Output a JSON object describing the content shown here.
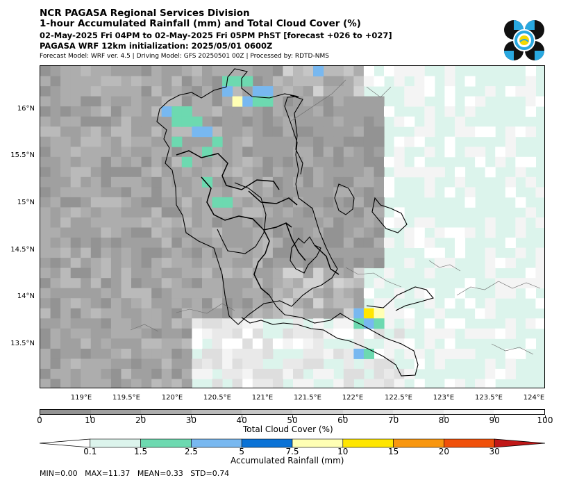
{
  "header": {
    "line1": "NCR PAGASA Regional Services Division",
    "line2": "1-hour Accumulated Rainfall (mm) and Total Cloud Cover (%)",
    "line3": "02-May-2025 Fri 04PM to 02-May-2025 Fri 05PM PhST [forecast +026 to +027]",
    "line4": "PAGASA WRF 12km initialization: 2025/05/01 0600Z",
    "line5": "Forecast Model: WRF ver. 4.5 | Driving Model: GFS 20250501 00Z | Processed by: RDTD-NMS"
  },
  "logo": {
    "name": "pagasa-logo-icon",
    "colors": {
      "black": "#111111",
      "sky": "#29a8e0",
      "yellow": "#f5d800"
    }
  },
  "map": {
    "lat_labels": [
      "16°N",
      "15.5°N",
      "15°N",
      "14.5°N",
      "14°N",
      "13.5°N"
    ],
    "lon_labels": [
      "119°E",
      "119.5°E",
      "120°E",
      "120.5°E",
      "121°E",
      "121.5°E",
      "122°E",
      "122.5°E",
      "123°E",
      "123.5°E",
      "124°E"
    ],
    "extent": {
      "lon": [
        118.55,
        124.1
      ],
      "lat": [
        13.0,
        16.47
      ]
    }
  },
  "cloud_cover": {
    "title": "Total Cloud Cover (%)",
    "ticks": [
      "0",
      "10",
      "20",
      "30",
      "40",
      "50",
      "60",
      "70",
      "80",
      "90",
      "100"
    ],
    "colors": [
      "#939393",
      "#a0a0a0",
      "#adadad",
      "#bababa",
      "#c6c6c6",
      "#d2d2d2",
      "#dedede",
      "#e9e9e9",
      "#f4f4f4",
      "#ffffff"
    ]
  },
  "rainfall": {
    "title": "Accumulated Rainfall (mm)",
    "ticks": [
      "0.1",
      "1.5",
      "2.5",
      "5",
      "7.5",
      "10",
      "15",
      "20",
      "30"
    ],
    "colors": [
      "#dcf4ec",
      "#6dd9b0",
      "#78b8f0",
      "#0a72d6",
      "#ffffb4",
      "#ffe600",
      "#f8960f",
      "#f0500a",
      "#c01818"
    ]
  },
  "stats": {
    "text": "MIN=0.00   MAX=11.37   MEAN=0.33   STD=0.74"
  }
}
